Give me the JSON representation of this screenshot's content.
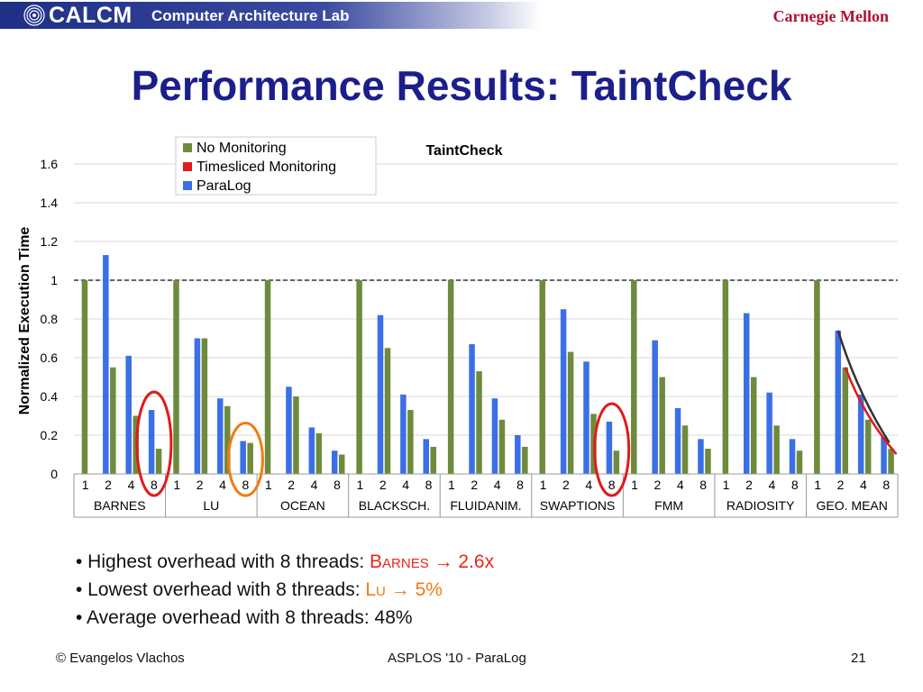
{
  "header": {
    "lab_short": "CALCM",
    "lab_name": "Computer Architecture Lab",
    "university": "Carnegie Mellon"
  },
  "slide": {
    "title": "Performance Results: TaintCheck"
  },
  "colors": {
    "no_monitoring": "#6e8b3d",
    "timesliced": "#e01b1b",
    "paralog": "#3b6fe8",
    "title": "#1b1f8a",
    "highlight_red": "#e8261c",
    "highlight_orange": "#f07b14"
  },
  "chart_data": {
    "type": "bar",
    "title": "TaintCheck",
    "ylabel": "Normalized Execution Time",
    "xlabel": "",
    "ylim": [
      0,
      1.6
    ],
    "yticks": [
      "0",
      "0.2",
      "0.4",
      "0.6",
      "0.8",
      "1",
      "1.2",
      "1.4",
      "1.6"
    ],
    "grid": true,
    "reference_line": 1,
    "legend_position": "top-center",
    "thread_counts": [
      "1",
      "2",
      "4",
      "8"
    ],
    "groups": [
      "BARNES",
      "LU",
      "OCEAN",
      "BLACKSCH.",
      "FLUIDANIM.",
      "SWAPTIONS",
      "FMM",
      "RADIOSITY",
      "GEO. MEAN"
    ],
    "series": [
      {
        "name": "No Monitoring",
        "color": "#6e8b3d",
        "values": [
          [
            1,
            0.55,
            0.3,
            0.13
          ],
          [
            1,
            0.7,
            0.35,
            0.16
          ],
          [
            1,
            0.4,
            0.21,
            0.1
          ],
          [
            1,
            0.65,
            0.33,
            0.14
          ],
          [
            1,
            0.53,
            0.28,
            0.14
          ],
          [
            1,
            0.63,
            0.31,
            0.12
          ],
          [
            1,
            0.5,
            0.25,
            0.13
          ],
          [
            1,
            0.5,
            0.25,
            0.12
          ],
          [
            1,
            0.55,
            0.28,
            0.13
          ]
        ]
      },
      {
        "name": "Timesliced Monitoring",
        "color": "#e01b1b",
        "values": [
          [
            null,
            null,
            null,
            null
          ],
          [
            null,
            null,
            null,
            null
          ],
          [
            null,
            null,
            null,
            null
          ],
          [
            null,
            null,
            null,
            null
          ],
          [
            null,
            null,
            null,
            null
          ],
          [
            null,
            null,
            null,
            null
          ],
          [
            null,
            null,
            null,
            null
          ],
          [
            null,
            null,
            null,
            null
          ],
          [
            null,
            null,
            null,
            null
          ]
        ]
      },
      {
        "name": "ParaLog",
        "color": "#3b6fe8",
        "values": [
          [
            null,
            1.13,
            0.61,
            0.33
          ],
          [
            null,
            0.7,
            0.39,
            0.17
          ],
          [
            null,
            0.45,
            0.24,
            0.12
          ],
          [
            null,
            0.82,
            0.41,
            0.18
          ],
          [
            null,
            0.67,
            0.39,
            0.2
          ],
          [
            null,
            0.85,
            0.58,
            0.27
          ],
          [
            null,
            0.69,
            0.34,
            0.18
          ],
          [
            null,
            0.83,
            0.42,
            0.18
          ],
          [
            null,
            0.74,
            0.41,
            0.19
          ]
        ]
      }
    ],
    "annotations": [
      {
        "type": "circle",
        "color": "#e01b1b",
        "group": "BARNES",
        "thread": "8"
      },
      {
        "type": "circle",
        "color": "#f07b14",
        "group": "LU",
        "thread": "8"
      },
      {
        "type": "circle",
        "color": "#e01b1b",
        "group": "SWAPTIONS",
        "thread": "8"
      },
      {
        "type": "curve",
        "color": "#333333",
        "group": "GEO. MEAN",
        "series": "ParaLog"
      },
      {
        "type": "curve",
        "color": "#e01b1b",
        "group": "GEO. MEAN",
        "series": "No Monitoring"
      }
    ]
  },
  "bullets": [
    {
      "prefix": "• Highest overhead with 8 threads: ",
      "name": "Barnes",
      "arrow": "→",
      "value": "2.6x",
      "color_key": "highlight_red"
    },
    {
      "prefix": "• Lowest overhead with 8 threads: ",
      "name": "Lu",
      "arrow": "→",
      "value": "5%",
      "color_key": "highlight_orange"
    },
    {
      "prefix": "• Average overhead with 8 threads: 48%",
      "name": "",
      "arrow": "",
      "value": "",
      "color_key": ""
    }
  ],
  "footer": {
    "author": "© Evangelos Vlachos",
    "venue": "ASPLOS '10 - ParaLog",
    "page": "21"
  }
}
